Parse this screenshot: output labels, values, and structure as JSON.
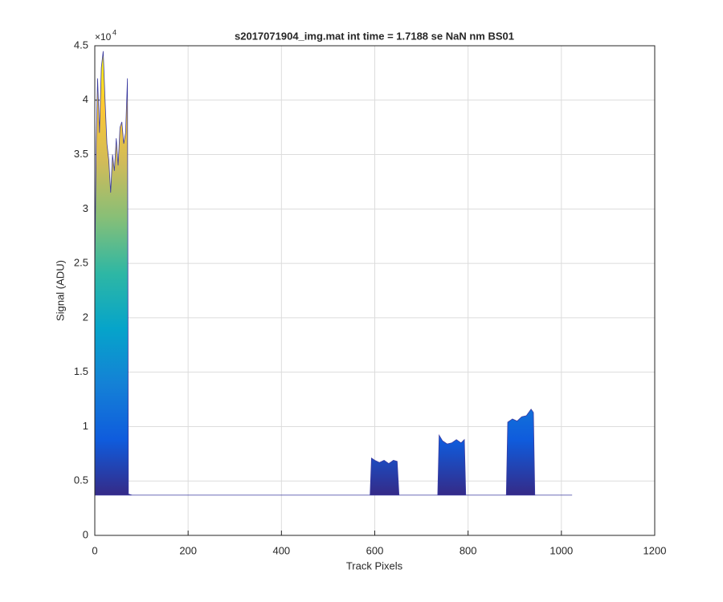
{
  "chart_data": {
    "type": "area",
    "title": "s2017071904_img.mat int time = 1.7188 se  NaN nm BS01",
    "x_label": "Track Pixels",
    "y_label": "Signal (ADU)",
    "y_multiplier": {
      "base": "×10",
      "exponent": "4"
    },
    "x": [
      0,
      3,
      6,
      10,
      14,
      18,
      22,
      26,
      30,
      34,
      38,
      42,
      46,
      50,
      54,
      58,
      62,
      66,
      70,
      72,
      80,
      590,
      593,
      600,
      610,
      620,
      630,
      640,
      648,
      652,
      735,
      738,
      745,
      755,
      765,
      775,
      785,
      792,
      795,
      882,
      885,
      895,
      905,
      915,
      925,
      935,
      940,
      943,
      1023
    ],
    "values": [
      24000,
      36000,
      42000,
      37000,
      43000,
      44500,
      40000,
      36000,
      34500,
      31500,
      35000,
      33500,
      36500,
      34000,
      37500,
      38000,
      36000,
      37000,
      42000,
      3800,
      3700,
      3700,
      7100,
      6900,
      6700,
      6900,
      6600,
      6900,
      6800,
      3700,
      3700,
      9200,
      8700,
      8400,
      8500,
      8800,
      8500,
      8800,
      3700,
      3700,
      10400,
      10700,
      10500,
      10900,
      11000,
      11600,
      11300,
      3700,
      3700
    ],
    "colormap": [
      "#352a87",
      "#0f5cdd",
      "#1481d6",
      "#06a4ca",
      "#2eb7a4",
      "#87bf77",
      "#d1bb59",
      "#fec832",
      "#f9fb0e"
    ],
    "xlim": [
      0,
      1200
    ],
    "xticks": [
      0,
      200,
      400,
      600,
      800,
      1000,
      1200
    ],
    "ylim": [
      0,
      45000
    ],
    "yticks": [
      0,
      {
        "value": 5000,
        "label": "0.5"
      },
      {
        "value": 10000,
        "label": "1"
      },
      {
        "value": 15000,
        "label": "1.5"
      },
      {
        "value": 20000,
        "label": "2"
      },
      {
        "value": 25000,
        "label": "2.5"
      },
      {
        "value": 30000,
        "label": "3"
      },
      {
        "value": 35000,
        "label": "3.5"
      },
      {
        "value": 40000,
        "label": "4"
      },
      {
        "value": 45000,
        "label": "4.5"
      }
    ],
    "grid": true
  }
}
